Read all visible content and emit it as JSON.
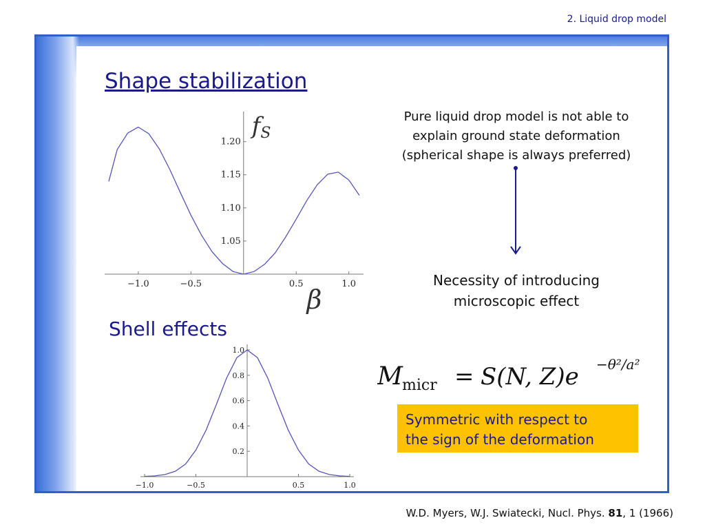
{
  "header": {
    "section": "2. Liquid drop model"
  },
  "title": "Shape stabilization",
  "subheading": "Shell effects",
  "notes": {
    "top_lines": [
      "Pure liquid drop model is not able to",
      "explain ground state deformation",
      "(spherical shape is always preferred)"
    ],
    "mid_lines": [
      "Necessity of introducing",
      "microscopic effect"
    ]
  },
  "formula": {
    "lhs": "M",
    "lhs_sub": "micr",
    "equals": "=",
    "rhs": "S(N, Z)e",
    "exponent": "−θ²/a²"
  },
  "highlight": {
    "lines": [
      "Symmetric with respect to",
      "the sign of the deformation"
    ],
    "color": "#ffc200"
  },
  "citation": {
    "prefix": "W.D. Myers, W.J. Swiatecki, Nucl. Phys. ",
    "volume": "81",
    "suffix": ", 1 (1966)"
  },
  "chart_data": [
    {
      "type": "line",
      "xlabel": "β",
      "ylabel": "f_S",
      "x_ticks": [
        "−1.0",
        "−0.5",
        "0.5",
        "1.0"
      ],
      "y_ticks": [
        "1.05",
        "1.10",
        "1.15",
        "1.20"
      ],
      "x_tick_values": [
        -1.0,
        -0.5,
        0.5,
        1.0
      ],
      "y_tick_values": [
        1.05,
        1.1,
        1.15,
        1.2
      ],
      "xlim": [
        -1.28,
        1.1
      ],
      "ylim": [
        1.0,
        1.235
      ],
      "x": [
        -1.28,
        -1.2,
        -1.1,
        -1.0,
        -0.9,
        -0.8,
        -0.7,
        -0.6,
        -0.5,
        -0.4,
        -0.3,
        -0.2,
        -0.1,
        0.0,
        0.1,
        0.2,
        0.3,
        0.4,
        0.5,
        0.6,
        0.7,
        0.8,
        0.9,
        1.0,
        1.1
      ],
      "values": [
        1.14,
        1.188,
        1.213,
        1.222,
        1.212,
        1.189,
        1.158,
        1.123,
        1.089,
        1.059,
        1.034,
        1.016,
        1.004,
        1.0,
        1.004,
        1.015,
        1.032,
        1.056,
        1.083,
        1.111,
        1.135,
        1.151,
        1.154,
        1.142,
        1.119
      ],
      "color": "#5555b8"
    },
    {
      "type": "line",
      "x_ticks": [
        "−1.0",
        "−0.5",
        "0.5",
        "1.0"
      ],
      "y_ticks": [
        "0.2",
        "0.4",
        "0.6",
        "0.8",
        "1.0"
      ],
      "x_tick_values": [
        -1.0,
        -0.5,
        0.5,
        1.0
      ],
      "y_tick_values": [
        0.2,
        0.4,
        0.6,
        0.8,
        1.0
      ],
      "xlim": [
        -1.0,
        1.0
      ],
      "ylim": [
        0.0,
        1.0
      ],
      "x": [
        -1.0,
        -0.9,
        -0.8,
        -0.7,
        -0.6,
        -0.5,
        -0.4,
        -0.3,
        -0.2,
        -0.1,
        0.0,
        0.1,
        0.2,
        0.3,
        0.4,
        0.5,
        0.6,
        0.7,
        0.8,
        0.9,
        1.0
      ],
      "values": [
        0.002,
        0.006,
        0.017,
        0.043,
        0.1,
        0.21,
        0.368,
        0.57,
        0.779,
        0.939,
        1.0,
        0.939,
        0.779,
        0.57,
        0.368,
        0.21,
        0.1,
        0.043,
        0.017,
        0.006,
        0.002
      ],
      "color": "#5555b8"
    }
  ]
}
